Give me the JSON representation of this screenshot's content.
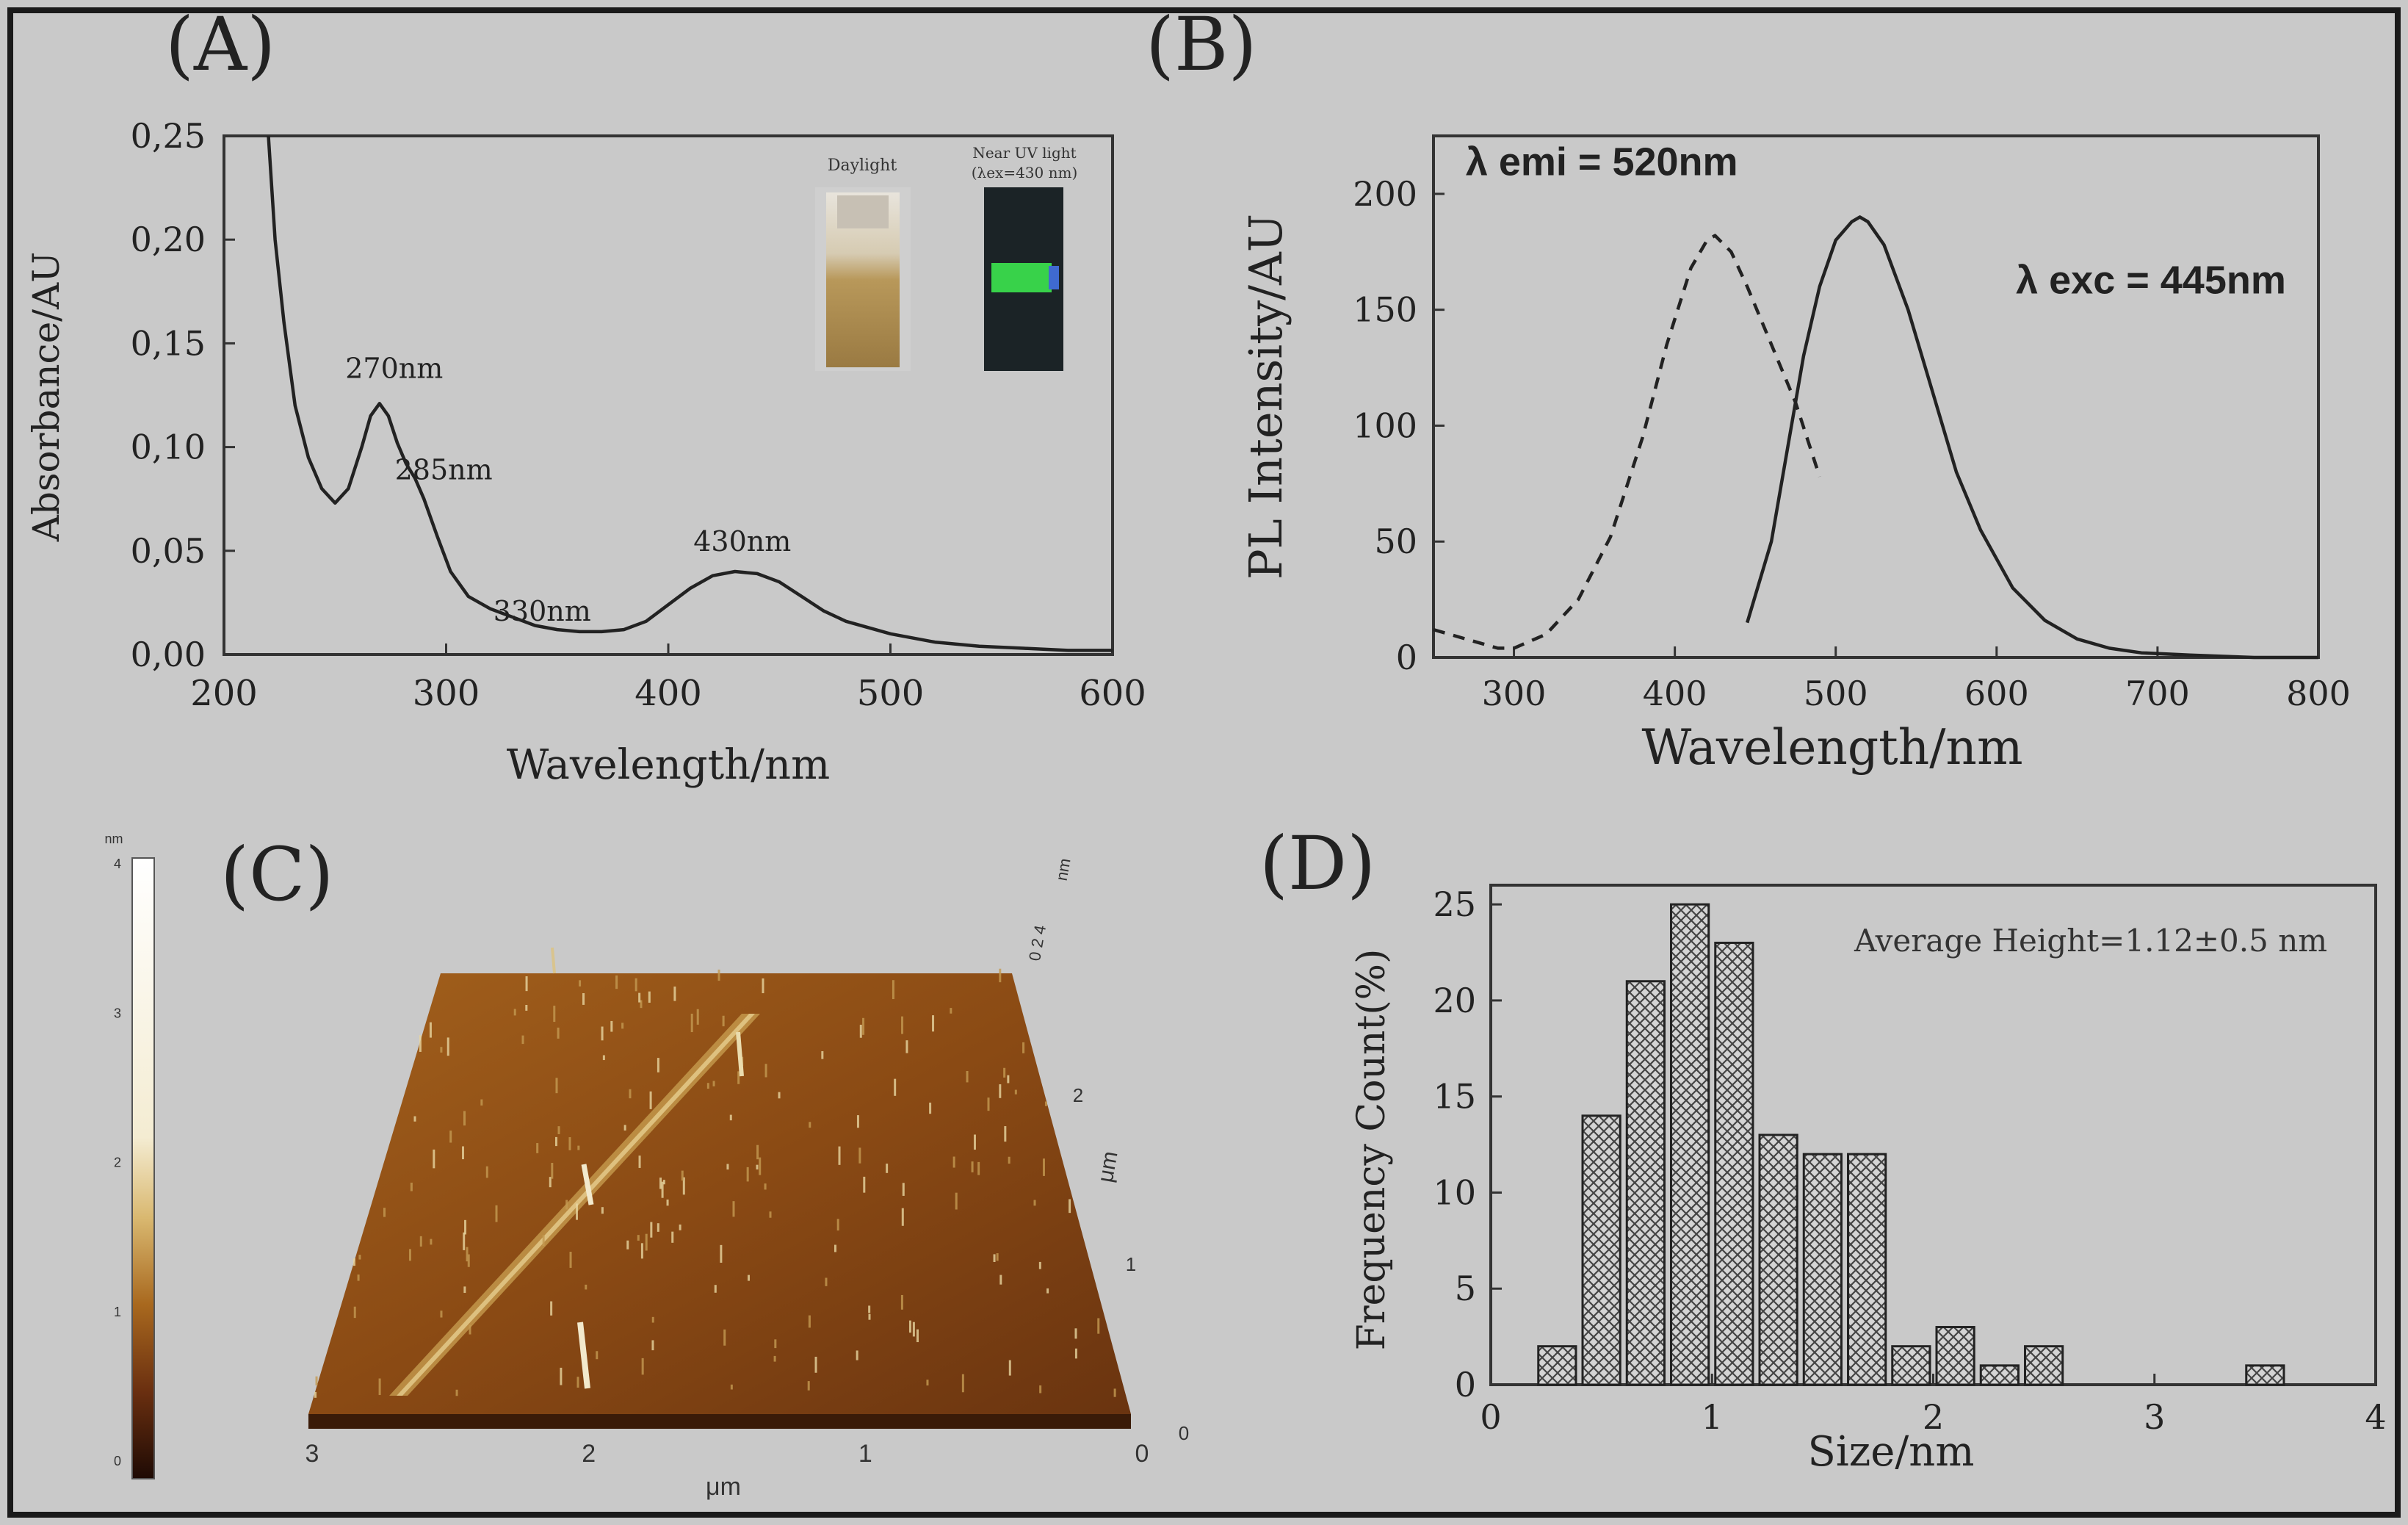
{
  "colors": {
    "background": "#c9c9c9",
    "ink": "#222222",
    "afm_dark": "#3a1b08",
    "afm_mid": "#8a4d14",
    "afm_light": "#e8d6a0",
    "pl_green": "#33cc44"
  },
  "panels": {
    "a": {
      "letter": "(A)",
      "inset_daylight": "Daylight",
      "inset_uv_line1": "Near UV light",
      "inset_uv_line2": "(λex=430 nm)"
    },
    "b": {
      "letter": "(B)"
    },
    "c": {
      "letter": "(C)",
      "scale_unit": "nm",
      "scale_ticks": [
        "4",
        "3",
        "2",
        "1",
        "0"
      ],
      "z_unit": "nm",
      "z_ticks": "0 2 4",
      "x_ticks": [
        "3",
        "2",
        "1",
        "0"
      ],
      "x_unit": "μm",
      "y_ticks": [
        "2",
        "1",
        "0"
      ],
      "y_unit": "μm"
    },
    "d": {
      "letter": "(D)"
    }
  },
  "chart_data": [
    {
      "id": "A",
      "type": "line",
      "xlabel": "Wavelength/nm",
      "ylabel": "Absorbance/AU",
      "xlim": [
        200,
        600
      ],
      "ylim": [
        0,
        0.25
      ],
      "xticks": [
        200,
        300,
        400,
        500,
        600
      ],
      "yticks": [
        0,
        0.05,
        0.1,
        0.15,
        0.2,
        0.25
      ],
      "ytick_labels": [
        "0,00",
        "0,05",
        "0,10",
        "0,15",
        "0,20",
        "0,25"
      ],
      "series": [
        {
          "name": "absorbance",
          "style": "solid",
          "x": [
            220,
            223,
            227,
            232,
            238,
            244,
            250,
            256,
            262,
            266,
            270,
            274,
            278,
            282,
            286,
            290,
            296,
            302,
            310,
            320,
            330,
            340,
            350,
            360,
            370,
            380,
            390,
            400,
            410,
            420,
            430,
            440,
            450,
            460,
            470,
            480,
            500,
            520,
            540,
            560,
            580,
            600
          ],
          "y": [
            0.25,
            0.2,
            0.16,
            0.12,
            0.095,
            0.08,
            0.073,
            0.08,
            0.1,
            0.115,
            0.121,
            0.115,
            0.102,
            0.092,
            0.085,
            0.075,
            0.057,
            0.04,
            0.028,
            0.022,
            0.018,
            0.014,
            0.012,
            0.011,
            0.011,
            0.012,
            0.016,
            0.024,
            0.032,
            0.038,
            0.04,
            0.039,
            0.035,
            0.028,
            0.021,
            0.016,
            0.01,
            0.006,
            0.004,
            0.003,
            0.002,
            0.002
          ]
        }
      ],
      "annotations": [
        {
          "text": "270nm",
          "x": 270,
          "y": 0.121
        },
        {
          "text": "285nm",
          "x": 285,
          "y": 0.088
        },
        {
          "text": "330nm",
          "x": 330,
          "y": 0.018
        },
        {
          "text": "430nm",
          "x": 430,
          "y": 0.04
        }
      ]
    },
    {
      "id": "B",
      "type": "line",
      "xlabel": "Wavelength/nm",
      "ylabel": "PL Intensity/AU",
      "xlim": [
        250,
        800
      ],
      "ylim": [
        0,
        225
      ],
      "xticks": [
        300,
        400,
        500,
        600,
        700,
        800
      ],
      "yticks": [
        0,
        50,
        100,
        150,
        200
      ],
      "series": [
        {
          "name": "excitation",
          "style": "dashed",
          "x": [
            250,
            270,
            290,
            300,
            320,
            340,
            360,
            380,
            395,
            410,
            420,
            425,
            435,
            445,
            460,
            475,
            490
          ],
          "y": [
            12,
            8,
            4,
            4,
            10,
            25,
            52,
            95,
            135,
            168,
            180,
            182,
            175,
            160,
            135,
            110,
            78
          ]
        },
        {
          "name": "emission",
          "style": "solid",
          "x": [
            445,
            460,
            470,
            480,
            490,
            500,
            510,
            515,
            520,
            530,
            545,
            560,
            575,
            590,
            610,
            630,
            650,
            670,
            690,
            720,
            760,
            800
          ],
          "y": [
            15,
            50,
            90,
            130,
            160,
            180,
            188,
            190,
            188,
            178,
            150,
            115,
            80,
            55,
            30,
            16,
            8,
            4,
            2,
            1,
            0,
            0
          ]
        }
      ],
      "annotations": [
        {
          "text": "λ emi = 520nm",
          "x": 270,
          "y": 208
        },
        {
          "text": "λ exc = 445nm",
          "x": 612,
          "y": 157
        }
      ]
    },
    {
      "id": "D",
      "type": "bar",
      "xlabel": "Size/nm",
      "ylabel": "Frequency Count(%)",
      "xlim": [
        0,
        4
      ],
      "ylim": [
        0,
        26
      ],
      "xticks": [
        0,
        1,
        2,
        3,
        4
      ],
      "yticks": [
        0,
        5,
        10,
        15,
        20,
        25
      ],
      "bar_width": 0.17,
      "categories": [
        0.3,
        0.5,
        0.7,
        0.9,
        1.1,
        1.3,
        1.5,
        1.7,
        1.9,
        2.1,
        2.3,
        2.5,
        3.5
      ],
      "values": [
        2,
        14,
        21,
        25,
        23,
        13,
        12,
        12,
        2,
        3,
        1,
        2,
        1
      ],
      "annotation": "Average Height=1.12±0.5 nm"
    }
  ]
}
